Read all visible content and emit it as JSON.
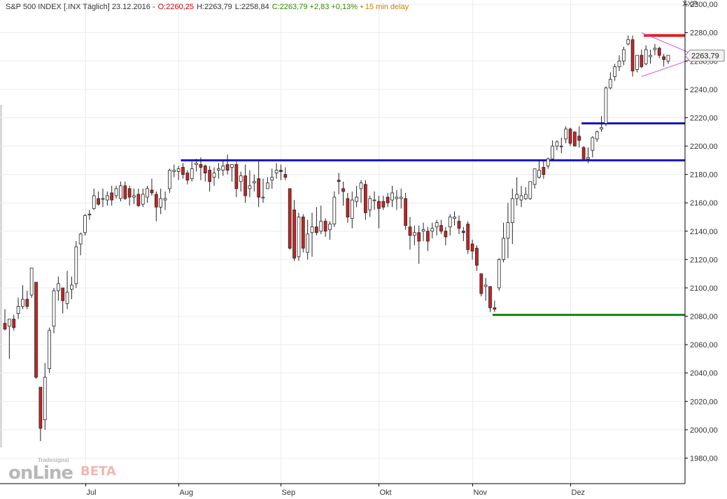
{
  "header": {
    "instrument": "S&P 500 INDEX [.INX Täglich] 23.12.2016 -",
    "open": "O:2260,25",
    "high": "H:2263,79",
    "low": "L:2258,84",
    "close": "C:2263,79 +2,83 +0,13%",
    "delay": "• 15 min delay"
  },
  "symbol": "XXP",
  "logo": {
    "main": "onLine",
    "brand": "Tradesignal",
    "beta": "BETA"
  },
  "colors": {
    "up_candle": "#ffffff",
    "down_candle": "#cc2222",
    "resistance_red": "#e02020",
    "support_blue": "#1515c0",
    "support_green": "#1a8a1a",
    "triangle": "#e040e0"
  },
  "chart_data": {
    "type": "candlestick",
    "title": "",
    "y_axis": {
      "range": [
        1962,
        2303
      ],
      "ticks": [
        "1980,00",
        "2000,00",
        "2020,00",
        "2040,00",
        "2060,00",
        "2080,00",
        "2100,00",
        "2120,00",
        "2140,00",
        "2160,00",
        "2180,00",
        "2200,00",
        "2220,00",
        "2240,00",
        "2260,00",
        "2280,00",
        "2300,00"
      ]
    },
    "x_axis": {
      "labels": [
        "Jul",
        "Aug",
        "Sep",
        "Okt",
        "Nov",
        "Dez"
      ],
      "label_dates": [
        "2016-07-01",
        "2016-08-01",
        "2016-09-01",
        "2016-10-03",
        "2016-11-01",
        "2016-12-01"
      ]
    },
    "last_price": "2263,79",
    "series": [
      {
        "name": "S&P 500 INDEX",
        "candles": [
          {
            "o": 2075,
            "h": 2085,
            "l": 2070,
            "c": 2071
          },
          {
            "o": 2073,
            "h": 2078,
            "l": 2050,
            "c": 2078
          },
          {
            "o": 2078,
            "h": 2081,
            "l": 2070,
            "c": 2072
          },
          {
            "o": 2082,
            "h": 2093,
            "l": 2078,
            "c": 2087
          },
          {
            "o": 2087,
            "h": 2102,
            "l": 2085,
            "c": 2092
          },
          {
            "o": 2092,
            "h": 2098,
            "l": 2085,
            "c": 2087
          },
          {
            "o": 2095,
            "h": 2114,
            "l": 2093,
            "c": 2114
          },
          {
            "o": 2104,
            "h": 2104,
            "l": 2036,
            "c": 2037
          },
          {
            "o": 2030,
            "h": 2030,
            "l": 1992,
            "c": 2001
          },
          {
            "o": 2007,
            "h": 2047,
            "l": 2000,
            "c": 2037
          },
          {
            "o": 2043,
            "h": 2072,
            "l": 2040,
            "c": 2070
          },
          {
            "o": 2073,
            "h": 2100,
            "l": 2068,
            "c": 2098
          },
          {
            "o": 2098,
            "h": 2108,
            "l": 2091,
            "c": 2103
          },
          {
            "o": 2100,
            "h": 2100,
            "l": 2082,
            "c": 2091
          },
          {
            "o": 2089,
            "h": 2112,
            "l": 2085,
            "c": 2097
          },
          {
            "o": 2099,
            "h": 2108,
            "l": 2092,
            "c": 2102
          },
          {
            "o": 2103,
            "h": 2133,
            "l": 2100,
            "c": 2129
          },
          {
            "o": 2131,
            "h": 2139,
            "l": 2123,
            "c": 2138
          },
          {
            "o": 2139,
            "h": 2152,
            "l": 2137,
            "c": 2151
          },
          {
            "o": 2152,
            "h": 2155,
            "l": 2148,
            "c": 2152
          },
          {
            "o": 2156,
            "h": 2170,
            "l": 2155,
            "c": 2165
          },
          {
            "o": 2163,
            "h": 2168,
            "l": 2158,
            "c": 2159
          },
          {
            "o": 2163,
            "h": 2170,
            "l": 2157,
            "c": 2163
          },
          {
            "o": 2162,
            "h": 2168,
            "l": 2158,
            "c": 2165
          },
          {
            "o": 2167,
            "h": 2172,
            "l": 2158,
            "c": 2162
          },
          {
            "o": 2165,
            "h": 2172,
            "l": 2163,
            "c": 2170
          },
          {
            "o": 2163,
            "h": 2175,
            "l": 2161,
            "c": 2172
          },
          {
            "o": 2172,
            "h": 2175,
            "l": 2162,
            "c": 2163
          },
          {
            "o": 2170,
            "h": 2172,
            "l": 2158,
            "c": 2164
          },
          {
            "o": 2164,
            "h": 2170,
            "l": 2159,
            "c": 2165
          },
          {
            "o": 2166,
            "h": 2170,
            "l": 2157,
            "c": 2158
          },
          {
            "o": 2159,
            "h": 2170,
            "l": 2157,
            "c": 2166
          },
          {
            "o": 2164,
            "h": 2172,
            "l": 2160,
            "c": 2170
          },
          {
            "o": 2169,
            "h": 2177,
            "l": 2165,
            "c": 2167
          },
          {
            "o": 2166,
            "h": 2168,
            "l": 2147,
            "c": 2157
          },
          {
            "o": 2157,
            "h": 2170,
            "l": 2152,
            "c": 2163
          },
          {
            "o": 2162,
            "h": 2168,
            "l": 2155,
            "c": 2163
          },
          {
            "o": 2170,
            "h": 2184,
            "l": 2167,
            "c": 2183
          },
          {
            "o": 2182,
            "h": 2187,
            "l": 2178,
            "c": 2183
          },
          {
            "o": 2182,
            "h": 2186,
            "l": 2176,
            "c": 2184
          },
          {
            "o": 2185,
            "h": 2188,
            "l": 2177,
            "c": 2180
          },
          {
            "o": 2181,
            "h": 2183,
            "l": 2173,
            "c": 2176
          },
          {
            "o": 2177,
            "h": 2189,
            "l": 2175,
            "c": 2184
          },
          {
            "o": 2187,
            "h": 2191,
            "l": 2182,
            "c": 2188
          },
          {
            "o": 2187,
            "h": 2192,
            "l": 2176,
            "c": 2185
          },
          {
            "o": 2186,
            "h": 2187,
            "l": 2175,
            "c": 2181
          },
          {
            "o": 2183,
            "h": 2186,
            "l": 2168,
            "c": 2175
          },
          {
            "o": 2178,
            "h": 2185,
            "l": 2172,
            "c": 2181
          },
          {
            "o": 2183,
            "h": 2188,
            "l": 2177,
            "c": 2184
          },
          {
            "o": 2183,
            "h": 2190,
            "l": 2179,
            "c": 2186
          },
          {
            "o": 2187,
            "h": 2194,
            "l": 2180,
            "c": 2183
          },
          {
            "o": 2185,
            "h": 2187,
            "l": 2175,
            "c": 2187
          },
          {
            "o": 2187,
            "h": 2189,
            "l": 2164,
            "c": 2170
          },
          {
            "o": 2175,
            "h": 2182,
            "l": 2168,
            "c": 2179
          },
          {
            "o": 2179,
            "h": 2187,
            "l": 2160,
            "c": 2165
          },
          {
            "o": 2170,
            "h": 2183,
            "l": 2164,
            "c": 2172
          },
          {
            "o": 2174,
            "h": 2180,
            "l": 2168,
            "c": 2175
          },
          {
            "o": 2177,
            "h": 2190,
            "l": 2157,
            "c": 2164
          },
          {
            "o": 2164,
            "h": 2177,
            "l": 2160,
            "c": 2164
          },
          {
            "o": 2170,
            "h": 2178,
            "l": 2170,
            "c": 2174
          },
          {
            "o": 2176,
            "h": 2184,
            "l": 2170,
            "c": 2178
          },
          {
            "o": 2181,
            "h": 2188,
            "l": 2177,
            "c": 2183
          },
          {
            "o": 2183,
            "h": 2187,
            "l": 2176,
            "c": 2182
          },
          {
            "o": 2180,
            "h": 2185,
            "l": 2176,
            "c": 2178
          },
          {
            "o": 2170,
            "h": 2170,
            "l": 2127,
            "c": 2128
          },
          {
            "o": 2155,
            "h": 2162,
            "l": 2119,
            "c": 2121
          },
          {
            "o": 2122,
            "h": 2153,
            "l": 2119,
            "c": 2150
          },
          {
            "o": 2150,
            "h": 2152,
            "l": 2125,
            "c": 2128
          },
          {
            "o": 2125,
            "h": 2148,
            "l": 2120,
            "c": 2138
          },
          {
            "o": 2139,
            "h": 2153,
            "l": 2122,
            "c": 2143
          },
          {
            "o": 2143,
            "h": 2157,
            "l": 2137,
            "c": 2139
          },
          {
            "o": 2140,
            "h": 2158,
            "l": 2138,
            "c": 2147
          },
          {
            "o": 2147,
            "h": 2149,
            "l": 2136,
            "c": 2140
          },
          {
            "o": 2141,
            "h": 2147,
            "l": 2134,
            "c": 2145
          },
          {
            "o": 2145,
            "h": 2168,
            "l": 2143,
            "c": 2164
          },
          {
            "o": 2176,
            "h": 2181,
            "l": 2166,
            "c": 2175
          },
          {
            "o": 2170,
            "h": 2175,
            "l": 2158,
            "c": 2168
          },
          {
            "o": 2163,
            "h": 2167,
            "l": 2146,
            "c": 2150
          },
          {
            "o": 2149,
            "h": 2168,
            "l": 2142,
            "c": 2162
          },
          {
            "o": 2161,
            "h": 2172,
            "l": 2157,
            "c": 2164
          },
          {
            "o": 2170,
            "h": 2176,
            "l": 2160,
            "c": 2174
          },
          {
            "o": 2173,
            "h": 2176,
            "l": 2148,
            "c": 2153
          },
          {
            "o": 2155,
            "h": 2165,
            "l": 2150,
            "c": 2163
          },
          {
            "o": 2162,
            "h": 2168,
            "l": 2155,
            "c": 2162
          },
          {
            "o": 2161,
            "h": 2165,
            "l": 2142,
            "c": 2156
          },
          {
            "o": 2161,
            "h": 2165,
            "l": 2155,
            "c": 2157
          },
          {
            "o": 2164,
            "h": 2167,
            "l": 2157,
            "c": 2160
          },
          {
            "o": 2162,
            "h": 2172,
            "l": 2157,
            "c": 2167
          },
          {
            "o": 2163,
            "h": 2169,
            "l": 2155,
            "c": 2164
          },
          {
            "o": 2163,
            "h": 2170,
            "l": 2156,
            "c": 2164
          },
          {
            "o": 2163,
            "h": 2167,
            "l": 2141,
            "c": 2144
          },
          {
            "o": 2143,
            "h": 2150,
            "l": 2127,
            "c": 2137
          },
          {
            "o": 2137,
            "h": 2144,
            "l": 2130,
            "c": 2139
          },
          {
            "o": 2139,
            "h": 2144,
            "l": 2117,
            "c": 2133
          },
          {
            "o": 2140,
            "h": 2146,
            "l": 2133,
            "c": 2141
          },
          {
            "o": 2140,
            "h": 2143,
            "l": 2126,
            "c": 2133
          },
          {
            "o": 2140,
            "h": 2146,
            "l": 2135,
            "c": 2142
          },
          {
            "o": 2143,
            "h": 2148,
            "l": 2137,
            "c": 2146
          },
          {
            "o": 2144,
            "h": 2148,
            "l": 2138,
            "c": 2140
          },
          {
            "o": 2140,
            "h": 2143,
            "l": 2130,
            "c": 2136
          },
          {
            "o": 2143,
            "h": 2152,
            "l": 2137,
            "c": 2150
          },
          {
            "o": 2149,
            "h": 2154,
            "l": 2144,
            "c": 2150
          },
          {
            "o": 2147,
            "h": 2151,
            "l": 2138,
            "c": 2142
          },
          {
            "o": 2140,
            "h": 2143,
            "l": 2133,
            "c": 2139
          },
          {
            "o": 2145,
            "h": 2147,
            "l": 2124,
            "c": 2127
          },
          {
            "o": 2131,
            "h": 2134,
            "l": 2120,
            "c": 2126
          },
          {
            "o": 2128,
            "h": 2130,
            "l": 2112,
            "c": 2116
          },
          {
            "o": 2110,
            "h": 2110,
            "l": 2094,
            "c": 2096
          },
          {
            "o": 2101,
            "h": 2107,
            "l": 2091,
            "c": 2102
          },
          {
            "o": 2101,
            "h": 2101,
            "l": 2083,
            "c": 2086
          },
          {
            "o": 2086,
            "h": 2091,
            "l": 2083,
            "c": 2085
          },
          {
            "o": 2100,
            "h": 2121,
            "l": 2098,
            "c": 2120
          },
          {
            "o": 2120,
            "h": 2146,
            "l": 2118,
            "c": 2135
          },
          {
            "o": 2135,
            "h": 2160,
            "l": 2121,
            "c": 2146
          },
          {
            "o": 2146,
            "h": 2170,
            "l": 2131,
            "c": 2163
          },
          {
            "o": 2163,
            "h": 2178,
            "l": 2158,
            "c": 2166
          },
          {
            "o": 2162,
            "h": 2172,
            "l": 2157,
            "c": 2165
          },
          {
            "o": 2163,
            "h": 2171,
            "l": 2162,
            "c": 2166
          },
          {
            "o": 2163,
            "h": 2175,
            "l": 2162,
            "c": 2175
          },
          {
            "o": 2173,
            "h": 2184,
            "l": 2170,
            "c": 2184
          },
          {
            "o": 2178,
            "h": 2190,
            "l": 2177,
            "c": 2183
          },
          {
            "o": 2185,
            "h": 2190,
            "l": 2177,
            "c": 2180
          },
          {
            "o": 2186,
            "h": 2192,
            "l": 2184,
            "c": 2191
          },
          {
            "o": 2191,
            "h": 2204,
            "l": 2190,
            "c": 2200
          },
          {
            "o": 2200,
            "h": 2204,
            "l": 2197,
            "c": 2203
          },
          {
            "o": 2200,
            "h": 2206,
            "l": 2195,
            "c": 2200
          },
          {
            "o": 2205,
            "h": 2214,
            "l": 2202,
            "c": 2212
          },
          {
            "o": 2212,
            "h": 2213,
            "l": 2200,
            "c": 2202
          },
          {
            "o": 2210,
            "h": 2210,
            "l": 2200,
            "c": 2200
          },
          {
            "o": 2207,
            "h": 2214,
            "l": 2199,
            "c": 2204
          },
          {
            "o": 2199,
            "h": 2200,
            "l": 2191,
            "c": 2191
          },
          {
            "o": 2191,
            "h": 2199,
            "l": 2188,
            "c": 2192
          },
          {
            "o": 2197,
            "h": 2207,
            "l": 2192,
            "c": 2206
          },
          {
            "o": 2205,
            "h": 2211,
            "l": 2203,
            "c": 2210
          },
          {
            "o": 2212,
            "h": 2221,
            "l": 2210,
            "c": 2213
          },
          {
            "o": 2216,
            "h": 2242,
            "l": 2214,
            "c": 2241
          },
          {
            "o": 2241,
            "h": 2252,
            "l": 2240,
            "c": 2247
          },
          {
            "o": 2249,
            "h": 2258,
            "l": 2246,
            "c": 2256
          },
          {
            "o": 2256,
            "h": 2264,
            "l": 2253,
            "c": 2260
          },
          {
            "o": 2260,
            "h": 2270,
            "l": 2257,
            "c": 2268
          },
          {
            "o": 2272,
            "h": 2278,
            "l": 2271,
            "c": 2275
          },
          {
            "o": 2275,
            "h": 2278,
            "l": 2249,
            "c": 2253
          },
          {
            "o": 2254,
            "h": 2264,
            "l": 2252,
            "c": 2264
          },
          {
            "o": 2264,
            "h": 2268,
            "l": 2255,
            "c": 2256
          },
          {
            "o": 2258,
            "h": 2271,
            "l": 2257,
            "c": 2268
          },
          {
            "o": 2263,
            "h": 2268,
            "l": 2258,
            "c": 2264
          },
          {
            "o": 2268,
            "h": 2272,
            "l": 2264,
            "c": 2269
          },
          {
            "o": 2269,
            "h": 2270,
            "l": 2262,
            "c": 2264
          },
          {
            "o": 2263,
            "h": 2265,
            "l": 2256,
            "c": 2261
          },
          {
            "o": 2260,
            "h": 2264,
            "l": 2258,
            "c": 2264
          }
        ]
      }
    ],
    "annotations": {
      "horizontal_lines": [
        {
          "name": "resistance-red",
          "y": 2278,
          "x_from_index": 144,
          "x_to_index": 152,
          "color": "#e02020"
        },
        {
          "name": "support-blue-upper",
          "y": 2216,
          "x_from_index": 130,
          "x_to_index": 152,
          "color": "#1515c0"
        },
        {
          "name": "support-blue-lower",
          "y": 2190,
          "x_from_index": 40,
          "x_to_index": 152,
          "color": "#1515c0"
        },
        {
          "name": "support-green",
          "y": 2081,
          "x_from_index": 110,
          "x_to_index": 152,
          "color": "#1a8a1a"
        }
      ],
      "triangle": {
        "upper_start": 2280,
        "lower_start": 2249,
        "apex": 2263,
        "x_from_index": 143,
        "x_to_index": 152
      }
    }
  }
}
